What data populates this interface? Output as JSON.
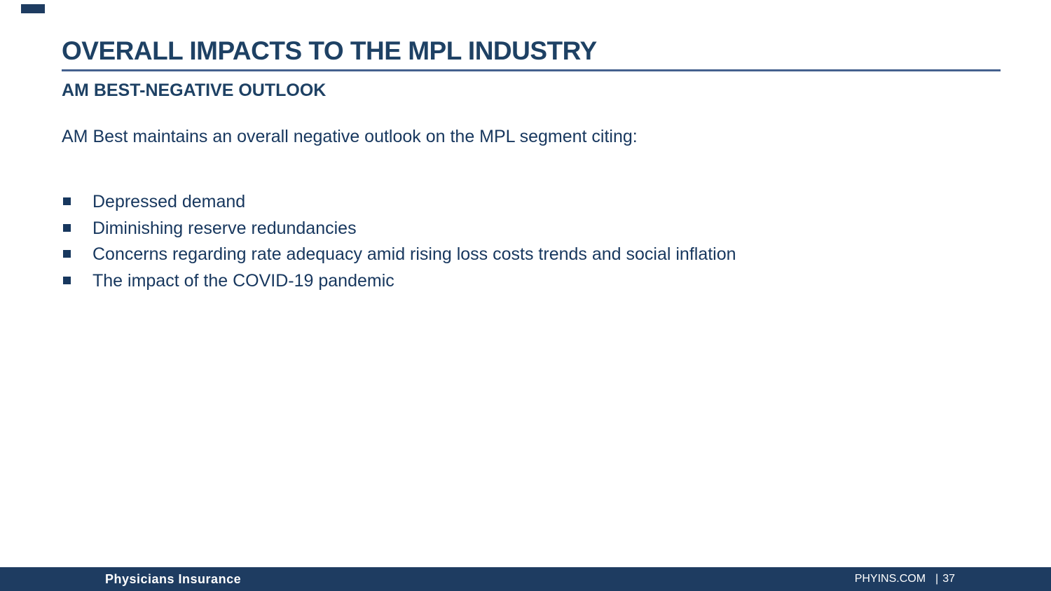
{
  "slide": {
    "title": "OVERALL IMPACTS TO THE MPL INDUSTRY",
    "subtitle": "AM BEST-NEGATIVE OUTLOOK",
    "intro": "AM Best maintains an overall negative outlook on the MPL segment citing:",
    "bullets": [
      "Depressed demand",
      "Diminishing reserve redundancies",
      "Concerns regarding rate adequacy amid rising loss costs trends and social inflation",
      "The impact of the COVID-19 pandemic"
    ]
  },
  "footer": {
    "brand": "Physicians Insurance",
    "site": "PHYINS.COM",
    "separator": "|",
    "page_number": "37"
  },
  "colors": {
    "heading": "#1e4164",
    "body_text": "#17375e",
    "underline": "#44618e",
    "footer_bar": "#1e3c61",
    "footer_text": "#ffffff"
  }
}
